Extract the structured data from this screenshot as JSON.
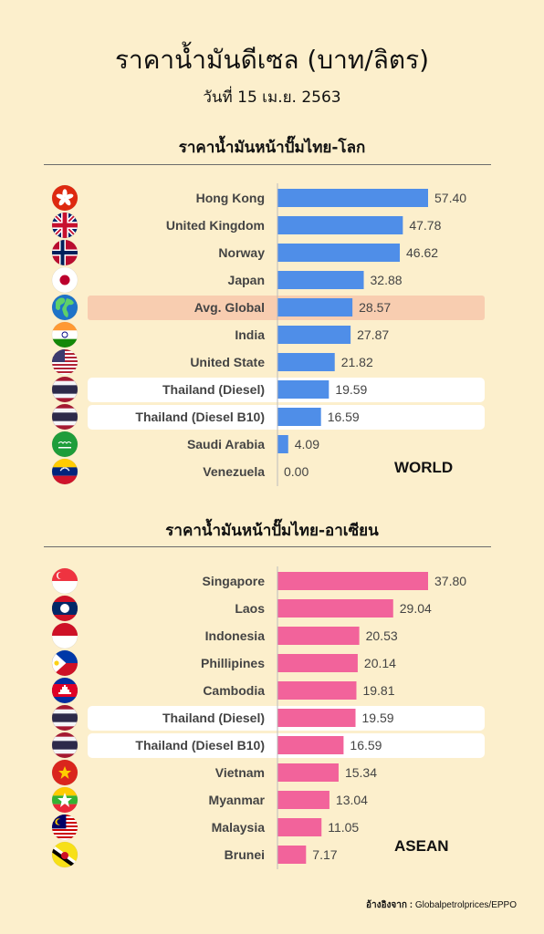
{
  "title": "ราคาน้ำมันดีเซล (บาท/ลิตร)",
  "date": "วันที่ 15 เม.ย. 2563",
  "source_label": "อ้างอิงจาก :",
  "source_text": "Globalpetrolprices/EPPO",
  "colors": {
    "background": "#fcefcc",
    "world_bar": "#4f8ee8",
    "asean_bar": "#f2639b",
    "highlight_white": "#ffffff",
    "highlight_avg": "#f8cdb0"
  },
  "chart_data": [
    {
      "type": "bar",
      "orientation": "horizontal",
      "title": "ราคาน้ำมันหน้าปั๊มไทย-โลก",
      "tag": "WORLD",
      "categories": [
        "Hong Kong",
        "United Kingdom",
        "Norway",
        "Japan",
        "Avg. Global",
        "India",
        "United State",
        "Thailand (Diesel)",
        "Thailand (Diesel B10)",
        "Saudi Arabia",
        "Venezuela"
      ],
      "values": [
        57.4,
        47.78,
        46.62,
        32.88,
        28.57,
        27.87,
        21.82,
        19.59,
        16.59,
        4.09,
        0.0
      ],
      "value_labels": [
        "57.40",
        "47.78",
        "46.62",
        "32.88",
        "28.57",
        "27.87",
        "21.82",
        "19.59",
        "16.59",
        "4.09",
        "0.00"
      ],
      "flags": [
        "hong-kong-flag-icon",
        "uk-flag-icon",
        "norway-flag-icon",
        "japan-flag-icon",
        "globe-icon",
        "india-flag-icon",
        "usa-flag-icon",
        "thailand-flag-icon",
        "thailand-flag-icon",
        "saudi-arabia-flag-icon",
        "venezuela-flag-icon"
      ],
      "highlight": [
        "",
        "",
        "",
        "",
        "avg",
        "",
        "",
        "white",
        "white",
        "",
        ""
      ],
      "xlim": [
        0,
        57.4
      ]
    },
    {
      "type": "bar",
      "orientation": "horizontal",
      "title": "ราคาน้ำมันหน้าปั๊มไทย-อาเซียน",
      "tag": "ASEAN",
      "categories": [
        "Singapore",
        "Laos",
        "Indonesia",
        "Phillipines",
        "Cambodia",
        "Thailand (Diesel)",
        "Thailand (Diesel B10)",
        "Vietnam",
        "Myanmar",
        "Malaysia",
        "Brunei"
      ],
      "values": [
        37.8,
        29.04,
        20.53,
        20.14,
        19.81,
        19.59,
        16.59,
        15.34,
        13.04,
        11.05,
        7.17
      ],
      "value_labels": [
        "37.80",
        "29.04",
        "20.53",
        "20.14",
        "19.81",
        "19.59",
        "16.59",
        "15.34",
        "13.04",
        "11.05",
        "7.17"
      ],
      "flags": [
        "singapore-flag-icon",
        "laos-flag-icon",
        "indonesia-flag-icon",
        "philippines-flag-icon",
        "cambodia-flag-icon",
        "thailand-flag-icon",
        "thailand-flag-icon",
        "vietnam-flag-icon",
        "myanmar-flag-icon",
        "malaysia-flag-icon",
        "brunei-flag-icon"
      ],
      "highlight": [
        "",
        "",
        "",
        "",
        "",
        "white",
        "white",
        "",
        "",
        "",
        ""
      ],
      "xlim": [
        0,
        37.8
      ]
    }
  ]
}
